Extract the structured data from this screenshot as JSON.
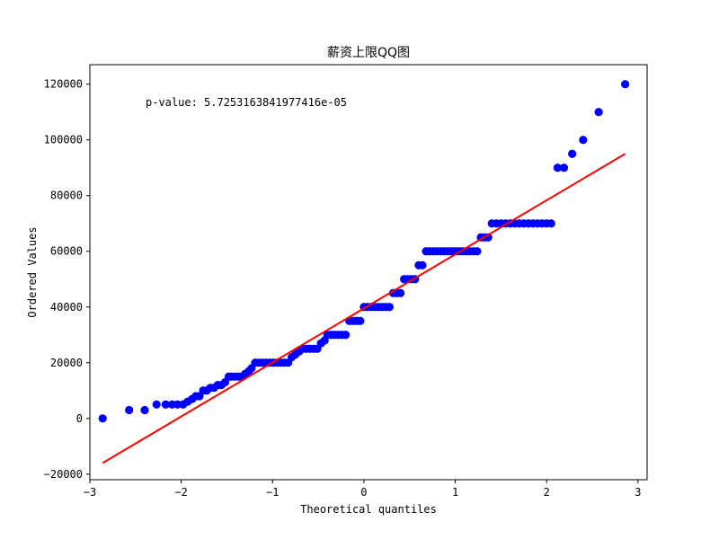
{
  "chart_data": {
    "type": "scatter",
    "title": "薪资上限QQ图",
    "xlabel": "Theoretical quantiles",
    "ylabel": "Ordered Values",
    "xlim": [
      -3.0,
      3.1
    ],
    "ylim": [
      -22000,
      127000
    ],
    "xticks": [
      -3,
      -2,
      -1,
      0,
      1,
      2,
      3
    ],
    "yticks": [
      -20000,
      0,
      20000,
      40000,
      60000,
      80000,
      100000,
      120000
    ],
    "xtick_labels": [
      "−3",
      "−2",
      "−1",
      "0",
      "1",
      "2",
      "3"
    ],
    "ytick_labels": [
      "−20000",
      "0",
      "20000",
      "40000",
      "60000",
      "80000",
      "100000",
      "120000"
    ],
    "annotation": "p-value: 5.7253163841977416e-05",
    "grid": false,
    "marker_color": "#0000ff",
    "line_color": "#ff0000",
    "fit_line": {
      "x": [
        -2.86,
        2.86
      ],
      "y": [
        -16000,
        95000
      ]
    },
    "points": [
      [
        -2.86,
        0
      ],
      [
        -2.57,
        3000
      ],
      [
        -2.4,
        3000
      ],
      [
        -2.27,
        5000
      ],
      [
        -2.17,
        5000
      ],
      [
        -2.1,
        5000
      ],
      [
        -2.04,
        5000
      ],
      [
        -1.98,
        5000
      ],
      [
        -1.93,
        6000
      ],
      [
        -1.88,
        7000
      ],
      [
        -1.84,
        8000
      ],
      [
        -1.8,
        8000
      ],
      [
        -1.76,
        10000
      ],
      [
        -1.72,
        10000
      ],
      [
        -1.68,
        11000
      ],
      [
        -1.64,
        11000
      ],
      [
        -1.6,
        12000
      ],
      [
        -1.56,
        12000
      ],
      [
        -1.52,
        13000
      ],
      [
        -1.48,
        15000
      ],
      [
        -1.45,
        15000
      ],
      [
        -1.41,
        15000
      ],
      [
        -1.37,
        15000
      ],
      [
        -1.33,
        15000
      ],
      [
        -1.3,
        16000
      ],
      [
        -1.26,
        17000
      ],
      [
        -1.23,
        18000
      ],
      [
        -1.19,
        20000
      ],
      [
        -1.15,
        20000
      ],
      [
        -1.11,
        20000
      ],
      [
        -1.07,
        20000
      ],
      [
        -1.03,
        20000
      ],
      [
        -0.99,
        20000
      ],
      [
        -0.95,
        20000
      ],
      [
        -0.91,
        20000
      ],
      [
        -0.87,
        20000
      ],
      [
        -0.83,
        20000
      ],
      [
        -0.79,
        22000
      ],
      [
        -0.75,
        23000
      ],
      [
        -0.71,
        24000
      ],
      [
        -0.67,
        25000
      ],
      [
        -0.63,
        25000
      ],
      [
        -0.59,
        25000
      ],
      [
        -0.55,
        25000
      ],
      [
        -0.51,
        25000
      ],
      [
        -0.47,
        27000
      ],
      [
        -0.43,
        28000
      ],
      [
        -0.4,
        30000
      ],
      [
        -0.36,
        30000
      ],
      [
        -0.32,
        30000
      ],
      [
        -0.28,
        30000
      ],
      [
        -0.24,
        30000
      ],
      [
        -0.2,
        30000
      ],
      [
        -0.16,
        35000
      ],
      [
        -0.12,
        35000
      ],
      [
        -0.08,
        35000
      ],
      [
        -0.04,
        35000
      ],
      [
        0.0,
        40000
      ],
      [
        0.04,
        40000
      ],
      [
        0.08,
        40000
      ],
      [
        0.12,
        40000
      ],
      [
        0.16,
        40000
      ],
      [
        0.2,
        40000
      ],
      [
        0.24,
        40000
      ],
      [
        0.28,
        40000
      ],
      [
        0.32,
        45000
      ],
      [
        0.36,
        45000
      ],
      [
        0.4,
        45000
      ],
      [
        0.44,
        50000
      ],
      [
        0.48,
        50000
      ],
      [
        0.52,
        50000
      ],
      [
        0.56,
        50000
      ],
      [
        0.6,
        55000
      ],
      [
        0.64,
        55000
      ],
      [
        0.68,
        60000
      ],
      [
        0.72,
        60000
      ],
      [
        0.76,
        60000
      ],
      [
        0.8,
        60000
      ],
      [
        0.84,
        60000
      ],
      [
        0.88,
        60000
      ],
      [
        0.92,
        60000
      ],
      [
        0.96,
        60000
      ],
      [
        1.0,
        60000
      ],
      [
        1.04,
        60000
      ],
      [
        1.08,
        60000
      ],
      [
        1.12,
        60000
      ],
      [
        1.16,
        60000
      ],
      [
        1.2,
        60000
      ],
      [
        1.24,
        60000
      ],
      [
        1.28,
        65000
      ],
      [
        1.32,
        65000
      ],
      [
        1.36,
        65000
      ],
      [
        1.4,
        70000
      ],
      [
        1.45,
        70000
      ],
      [
        1.5,
        70000
      ],
      [
        1.55,
        70000
      ],
      [
        1.6,
        70000
      ],
      [
        1.65,
        70000
      ],
      [
        1.7,
        70000
      ],
      [
        1.75,
        70000
      ],
      [
        1.8,
        70000
      ],
      [
        1.85,
        70000
      ],
      [
        1.9,
        70000
      ],
      [
        1.95,
        70000
      ],
      [
        2.0,
        70000
      ],
      [
        2.05,
        70000
      ],
      [
        2.12,
        90000
      ],
      [
        2.19,
        90000
      ],
      [
        2.28,
        95000
      ],
      [
        2.4,
        100000
      ],
      [
        2.57,
        110000
      ],
      [
        2.86,
        120000
      ]
    ]
  }
}
